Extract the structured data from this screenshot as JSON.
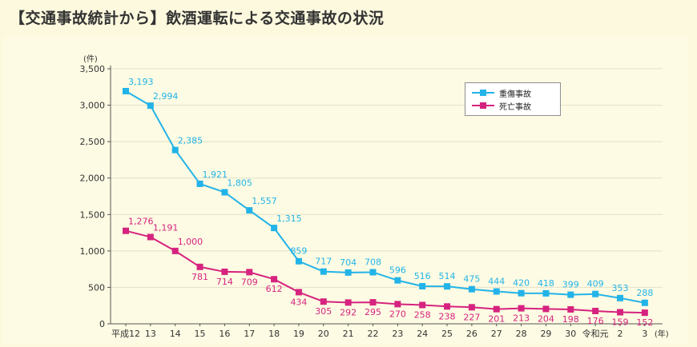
{
  "title": "【交通事故統計から】飲酒運転による交通事故の状況",
  "chart_data": {
    "type": "line",
    "ylabel": "(件)",
    "xlabel": "(年)",
    "ylim": [
      0,
      3500
    ],
    "yticks": [
      "0",
      "500",
      "1,000",
      "1,500",
      "2,000",
      "2,500",
      "3,000",
      "3,500"
    ],
    "categories": [
      "平成12",
      "13",
      "14",
      "15",
      "16",
      "17",
      "18",
      "19",
      "20",
      "21",
      "22",
      "23",
      "24",
      "25",
      "26",
      "27",
      "28",
      "29",
      "30",
      "令和元",
      "2",
      "3"
    ],
    "grid": true,
    "legend_position": "top-right",
    "series": [
      {
        "name": "重傷事故",
        "color": "#22b3e8",
        "values": [
          3193,
          2994,
          2385,
          1921,
          1805,
          1557,
          1315,
          859,
          717,
          704,
          708,
          596,
          516,
          514,
          475,
          444,
          420,
          418,
          399,
          409,
          353,
          288
        ],
        "labels": [
          "3,193",
          "2,994",
          "2,385",
          "1,921",
          "1,805",
          "1,557",
          "1,315",
          "859",
          "717",
          "704",
          "708",
          "596",
          "516",
          "514",
          "475",
          "444",
          "420",
          "418",
          "399",
          "409",
          "353",
          "288"
        ]
      },
      {
        "name": "死亡事故",
        "color": "#d6237f",
        "values": [
          1276,
          1191,
          1000,
          781,
          714,
          709,
          612,
          434,
          305,
          292,
          295,
          270,
          258,
          238,
          227,
          201,
          213,
          204,
          198,
          176,
          159,
          152
        ],
        "labels": [
          "1,276",
          "1,191",
          "1,000",
          "781",
          "714",
          "709",
          "612",
          "434",
          "305",
          "292",
          "295",
          "270",
          "258",
          "238",
          "227",
          "201",
          "213",
          "204",
          "198",
          "176",
          "159",
          "152"
        ]
      }
    ]
  }
}
